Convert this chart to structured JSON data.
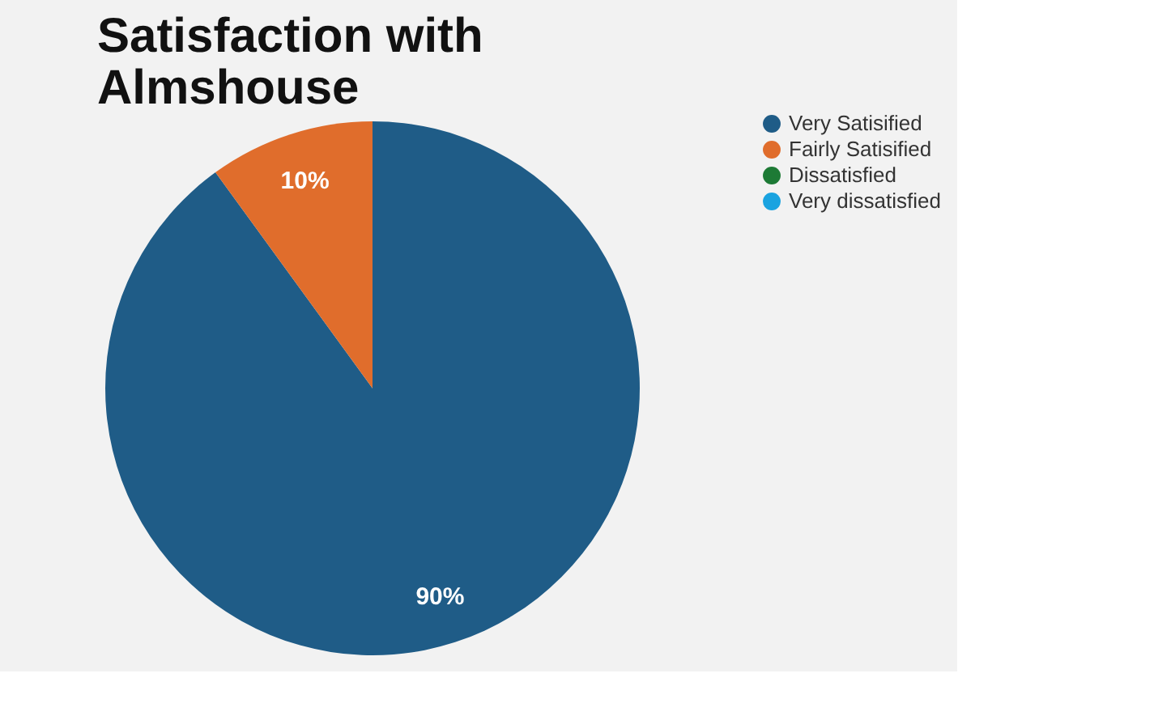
{
  "chart_data": {
    "type": "pie",
    "title": "Satisfaction with Almshouse",
    "categories": [
      "Very Satisified",
      "Fairly Satisified",
      "Dissatisfied",
      "Very dissatisfied"
    ],
    "values": [
      90,
      10,
      0,
      0
    ],
    "colors": [
      "#1f5c87",
      "#e06d2c",
      "#1d7a35",
      "#1aa3e0"
    ],
    "value_labels": [
      "90%",
      "10%",
      null,
      null
    ],
    "legend": "right"
  }
}
